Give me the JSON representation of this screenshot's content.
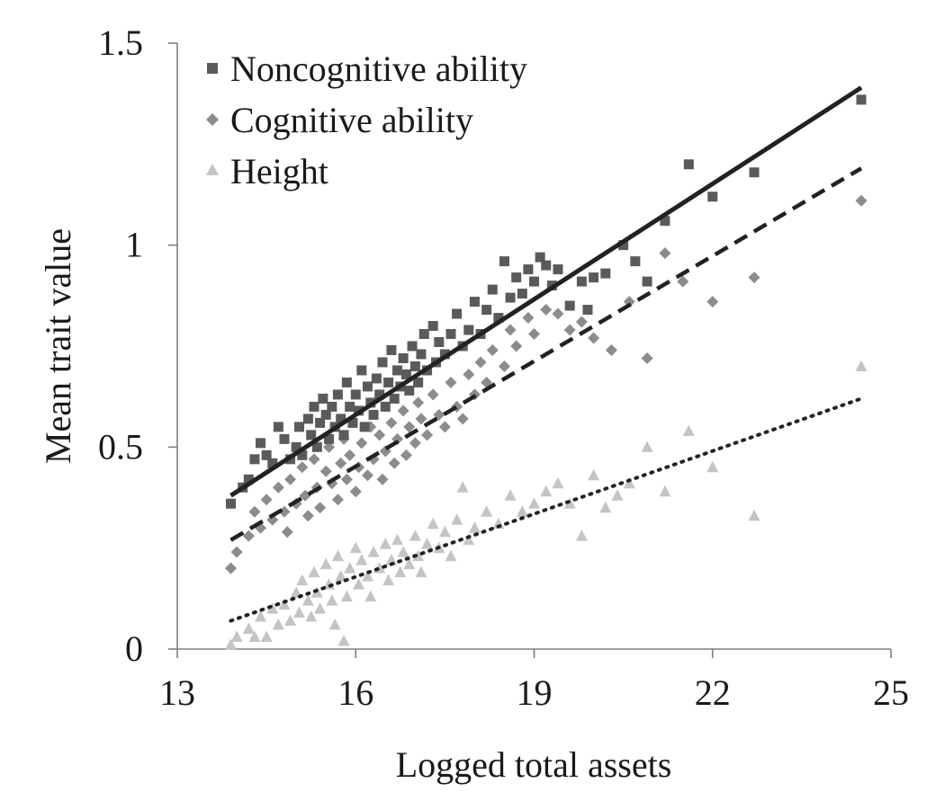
{
  "chart_data": {
    "type": "scatter",
    "title": "",
    "xlabel": "Logged total assets",
    "ylabel": "Mean trait value",
    "xlim": [
      13,
      25
    ],
    "ylim": [
      0,
      1.5
    ],
    "xticks": [
      13,
      16,
      19,
      22,
      25
    ],
    "xtick_labels": [
      "13",
      "16",
      "19",
      "22",
      "25"
    ],
    "yticks": [
      0,
      0.5,
      1,
      1.5
    ],
    "ytick_labels": [
      "0",
      "0.5",
      "1",
      "1.5"
    ],
    "grid": false,
    "legend_position": "top-left",
    "series": [
      {
        "name": "Noncognitive ability",
        "marker": "square",
        "color": "#5a5a5a",
        "trend": {
          "style": "solid",
          "color": "#222222",
          "x": [
            13.9,
            24.5
          ],
          "y": [
            0.38,
            1.39
          ]
        },
        "points": [
          [
            13.9,
            0.36
          ],
          [
            14.1,
            0.4
          ],
          [
            14.2,
            0.42
          ],
          [
            14.3,
            0.47
          ],
          [
            14.4,
            0.51
          ],
          [
            14.5,
            0.48
          ],
          [
            14.6,
            0.46
          ],
          [
            14.7,
            0.55
          ],
          [
            14.8,
            0.52
          ],
          [
            14.9,
            0.47
          ],
          [
            15.0,
            0.5
          ],
          [
            15.05,
            0.55
          ],
          [
            15.1,
            0.48
          ],
          [
            15.2,
            0.57
          ],
          [
            15.25,
            0.53
          ],
          [
            15.3,
            0.6
          ],
          [
            15.35,
            0.5
          ],
          [
            15.4,
            0.56
          ],
          [
            15.45,
            0.62
          ],
          [
            15.5,
            0.58
          ],
          [
            15.55,
            0.52
          ],
          [
            15.6,
            0.6
          ],
          [
            15.65,
            0.55
          ],
          [
            15.7,
            0.63
          ],
          [
            15.75,
            0.57
          ],
          [
            15.8,
            0.53
          ],
          [
            15.85,
            0.66
          ],
          [
            15.9,
            0.6
          ],
          [
            15.95,
            0.56
          ],
          [
            16.0,
            0.63
          ],
          [
            16.05,
            0.59
          ],
          [
            16.1,
            0.69
          ],
          [
            16.15,
            0.55
          ],
          [
            16.2,
            0.65
          ],
          [
            16.25,
            0.61
          ],
          [
            16.3,
            0.58
          ],
          [
            16.35,
            0.67
          ],
          [
            16.4,
            0.63
          ],
          [
            16.45,
            0.71
          ],
          [
            16.5,
            0.6
          ],
          [
            16.55,
            0.66
          ],
          [
            16.6,
            0.74
          ],
          [
            16.65,
            0.62
          ],
          [
            16.7,
            0.69
          ],
          [
            16.75,
            0.65
          ],
          [
            16.8,
            0.72
          ],
          [
            16.85,
            0.68
          ],
          [
            16.9,
            0.64
          ],
          [
            16.95,
            0.75
          ],
          [
            17.0,
            0.7
          ],
          [
            17.05,
            0.66
          ],
          [
            17.1,
            0.73
          ],
          [
            17.15,
            0.78
          ],
          [
            17.2,
            0.69
          ],
          [
            17.3,
            0.8
          ],
          [
            17.35,
            0.71
          ],
          [
            17.4,
            0.76
          ],
          [
            17.5,
            0.73
          ],
          [
            17.6,
            0.78
          ],
          [
            17.7,
            0.83
          ],
          [
            17.8,
            0.75
          ],
          [
            17.9,
            0.79
          ],
          [
            18.0,
            0.86
          ],
          [
            18.1,
            0.78
          ],
          [
            18.2,
            0.84
          ],
          [
            18.3,
            0.89
          ],
          [
            18.4,
            0.82
          ],
          [
            18.5,
            0.96
          ],
          [
            18.6,
            0.87
          ],
          [
            18.7,
            0.92
          ],
          [
            18.8,
            0.88
          ],
          [
            18.9,
            0.94
          ],
          [
            19.0,
            0.91
          ],
          [
            19.1,
            0.97
          ],
          [
            19.2,
            0.95
          ],
          [
            19.3,
            0.9
          ],
          [
            19.4,
            0.94
          ],
          [
            19.6,
            0.85
          ],
          [
            19.8,
            0.91
          ],
          [
            19.9,
            0.84
          ],
          [
            20.0,
            0.92
          ],
          [
            20.2,
            0.93
          ],
          [
            20.5,
            1.0
          ],
          [
            20.7,
            0.96
          ],
          [
            20.9,
            0.91
          ],
          [
            21.2,
            1.06
          ],
          [
            21.6,
            1.2
          ],
          [
            22.0,
            1.12
          ],
          [
            22.7,
            1.18
          ],
          [
            24.5,
            1.36
          ]
        ]
      },
      {
        "name": "Cognitive ability",
        "marker": "diamond",
        "color": "#8c8c8c",
        "trend": {
          "style": "dashed",
          "color": "#222222",
          "x": [
            13.9,
            24.5
          ],
          "y": [
            0.27,
            1.19
          ]
        },
        "points": [
          [
            13.9,
            0.2
          ],
          [
            14.0,
            0.24
          ],
          [
            14.2,
            0.28
          ],
          [
            14.3,
            0.34
          ],
          [
            14.4,
            0.3
          ],
          [
            14.5,
            0.37
          ],
          [
            14.6,
            0.32
          ],
          [
            14.7,
            0.4
          ],
          [
            14.8,
            0.34
          ],
          [
            14.85,
            0.29
          ],
          [
            14.9,
            0.42
          ],
          [
            15.0,
            0.36
          ],
          [
            15.1,
            0.45
          ],
          [
            15.15,
            0.38
          ],
          [
            15.2,
            0.33
          ],
          [
            15.3,
            0.47
          ],
          [
            15.35,
            0.4
          ],
          [
            15.4,
            0.35
          ],
          [
            15.5,
            0.44
          ],
          [
            15.55,
            0.5
          ],
          [
            15.6,
            0.41
          ],
          [
            15.7,
            0.37
          ],
          [
            15.75,
            0.46
          ],
          [
            15.8,
            0.52
          ],
          [
            15.85,
            0.42
          ],
          [
            15.9,
            0.48
          ],
          [
            16.0,
            0.39
          ],
          [
            16.05,
            0.45
          ],
          [
            16.1,
            0.51
          ],
          [
            16.2,
            0.43
          ],
          [
            16.25,
            0.55
          ],
          [
            16.3,
            0.47
          ],
          [
            16.4,
            0.53
          ],
          [
            16.45,
            0.42
          ],
          [
            16.5,
            0.49
          ],
          [
            16.6,
            0.56
          ],
          [
            16.65,
            0.46
          ],
          [
            16.7,
            0.52
          ],
          [
            16.8,
            0.59
          ],
          [
            16.85,
            0.48
          ],
          [
            16.9,
            0.55
          ],
          [
            17.0,
            0.51
          ],
          [
            17.05,
            0.61
          ],
          [
            17.1,
            0.57
          ],
          [
            17.2,
            0.53
          ],
          [
            17.3,
            0.63
          ],
          [
            17.4,
            0.58
          ],
          [
            17.5,
            0.55
          ],
          [
            17.6,
            0.66
          ],
          [
            17.7,
            0.6
          ],
          [
            17.8,
            0.57
          ],
          [
            17.9,
            0.68
          ],
          [
            18.0,
            0.63
          ],
          [
            18.1,
            0.71
          ],
          [
            18.2,
            0.66
          ],
          [
            18.3,
            0.74
          ],
          [
            18.5,
            0.7
          ],
          [
            18.6,
            0.79
          ],
          [
            18.7,
            0.75
          ],
          [
            18.9,
            0.82
          ],
          [
            19.0,
            0.78
          ],
          [
            19.2,
            0.84
          ],
          [
            19.4,
            0.83
          ],
          [
            19.6,
            0.79
          ],
          [
            19.8,
            0.81
          ],
          [
            20.0,
            0.77
          ],
          [
            20.3,
            0.74
          ],
          [
            20.6,
            0.86
          ],
          [
            20.9,
            0.72
          ],
          [
            21.2,
            0.98
          ],
          [
            21.5,
            0.91
          ],
          [
            22.0,
            0.86
          ],
          [
            22.7,
            0.92
          ],
          [
            24.5,
            1.11
          ]
        ]
      },
      {
        "name": "Height",
        "marker": "triangle",
        "color": "#c4c4c4",
        "trend": {
          "style": "dotted",
          "color": "#222222",
          "x": [
            13.9,
            24.5
          ],
          "y": [
            0.07,
            0.62
          ]
        },
        "points": [
          [
            13.9,
            0.01
          ],
          [
            14.0,
            0.03
          ],
          [
            14.2,
            0.05
          ],
          [
            14.3,
            0.03
          ],
          [
            14.4,
            0.08
          ],
          [
            14.5,
            0.03
          ],
          [
            14.6,
            0.1
          ],
          [
            14.7,
            0.06
          ],
          [
            14.8,
            0.11
          ],
          [
            14.9,
            0.07
          ],
          [
            15.0,
            0.14
          ],
          [
            15.05,
            0.09
          ],
          [
            15.1,
            0.17
          ],
          [
            15.2,
            0.12
          ],
          [
            15.25,
            0.08
          ],
          [
            15.3,
            0.19
          ],
          [
            15.35,
            0.14
          ],
          [
            15.4,
            0.1
          ],
          [
            15.5,
            0.21
          ],
          [
            15.55,
            0.16
          ],
          [
            15.6,
            0.12
          ],
          [
            15.65,
            0.06
          ],
          [
            15.7,
            0.23
          ],
          [
            15.75,
            0.18
          ],
          [
            15.8,
            0.02
          ],
          [
            15.85,
            0.13
          ],
          [
            15.9,
            0.2
          ],
          [
            16.0,
            0.25
          ],
          [
            16.05,
            0.16
          ],
          [
            16.1,
            0.22
          ],
          [
            16.2,
            0.18
          ],
          [
            16.25,
            0.13
          ],
          [
            16.3,
            0.24
          ],
          [
            16.4,
            0.2
          ],
          [
            16.5,
            0.26
          ],
          [
            16.55,
            0.17
          ],
          [
            16.6,
            0.22
          ],
          [
            16.7,
            0.27
          ],
          [
            16.75,
            0.19
          ],
          [
            16.8,
            0.24
          ],
          [
            16.9,
            0.21
          ],
          [
            17.0,
            0.28
          ],
          [
            17.05,
            0.23
          ],
          [
            17.1,
            0.19
          ],
          [
            17.2,
            0.26
          ],
          [
            17.3,
            0.31
          ],
          [
            17.4,
            0.25
          ],
          [
            17.5,
            0.29
          ],
          [
            17.6,
            0.23
          ],
          [
            17.7,
            0.32
          ],
          [
            17.8,
            0.4
          ],
          [
            17.9,
            0.27
          ],
          [
            18.0,
            0.3
          ],
          [
            18.2,
            0.34
          ],
          [
            18.4,
            0.31
          ],
          [
            18.6,
            0.38
          ],
          [
            18.8,
            0.34
          ],
          [
            19.0,
            0.36
          ],
          [
            19.2,
            0.39
          ],
          [
            19.4,
            0.41
          ],
          [
            19.6,
            0.36
          ],
          [
            19.8,
            0.28
          ],
          [
            20.0,
            0.43
          ],
          [
            20.2,
            0.35
          ],
          [
            20.4,
            0.38
          ],
          [
            20.6,
            0.41
          ],
          [
            20.9,
            0.5
          ],
          [
            21.2,
            0.39
          ],
          [
            21.6,
            0.54
          ],
          [
            22.0,
            0.45
          ],
          [
            22.7,
            0.33
          ],
          [
            24.5,
            0.7
          ]
        ]
      }
    ]
  }
}
